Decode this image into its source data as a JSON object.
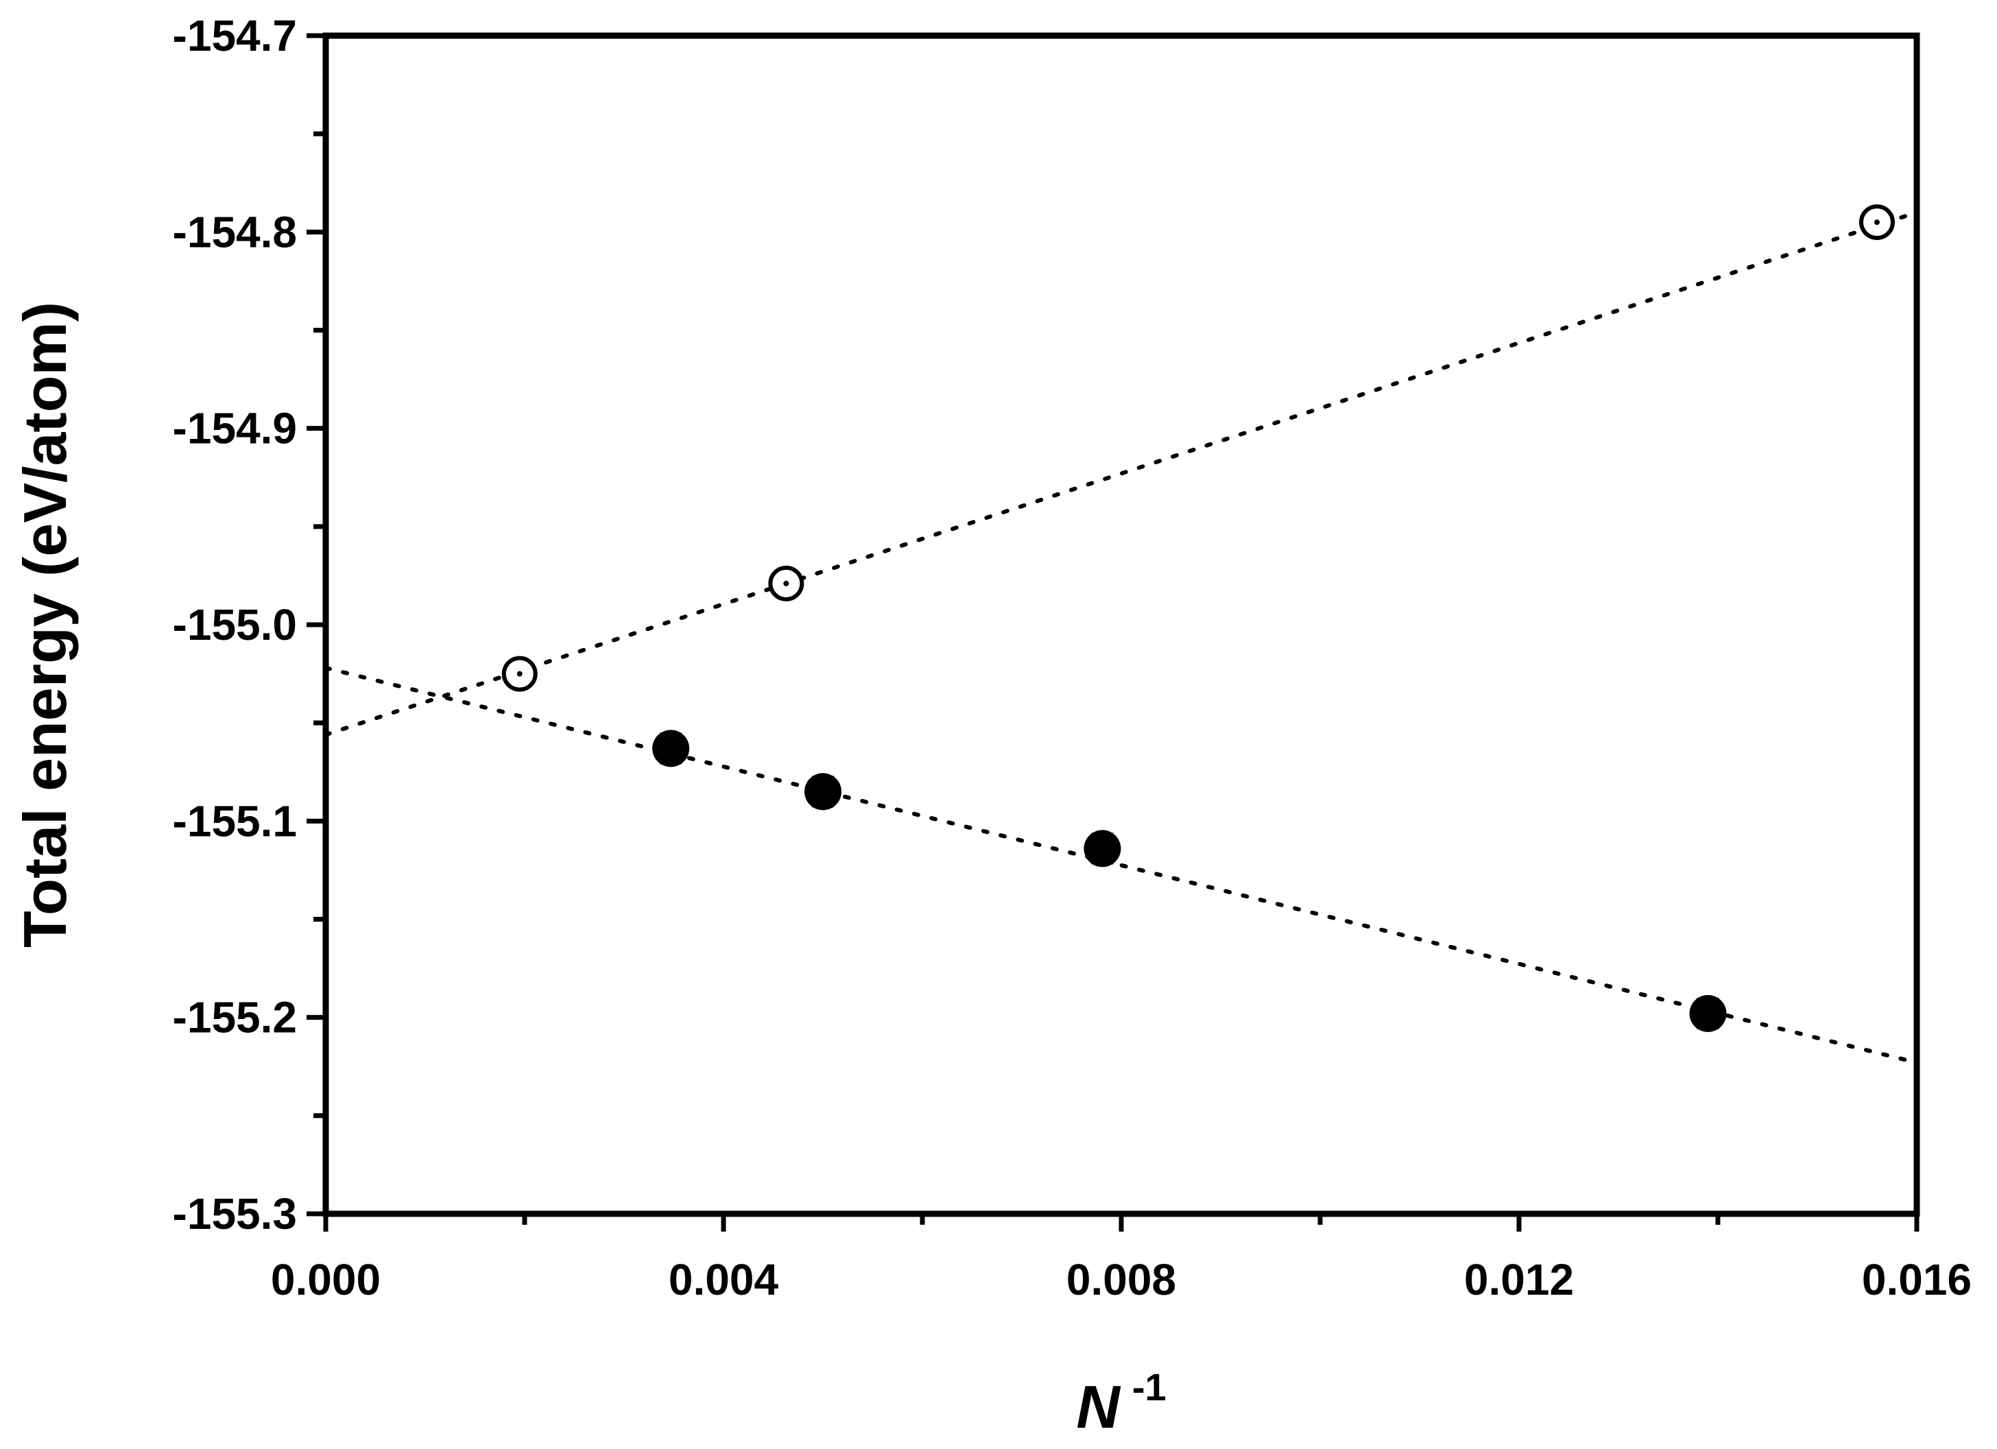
{
  "chart_data": {
    "type": "scatter",
    "title": "",
    "xlabel": "N",
    "xlabel_superscript": "-1",
    "ylabel": "Total energy (eV/atom)",
    "xlim": [
      0.0,
      0.016
    ],
    "ylim": [
      -155.3,
      -154.7
    ],
    "x_ticks": [
      "0.000",
      "0.004",
      "0.008",
      "0.012",
      "0.016"
    ],
    "y_ticks": [
      "-154.7",
      "-154.8",
      "-154.9",
      "-155.0",
      "-155.1",
      "-155.2",
      "-155.3"
    ],
    "grid": false,
    "legend": "none",
    "series": [
      {
        "marker": "open-circle-dot",
        "x": [
          0.00195,
          0.00463,
          0.0156
        ],
        "y": [
          -155.025,
          -154.979,
          -154.795
        ],
        "error": [
          0.0,
          0.0,
          0.0
        ],
        "fit": {
          "style": "dotted",
          "x": [
            0.0,
            0.016
          ],
          "y": [
            -155.056,
            -154.79
          ]
        }
      },
      {
        "marker": "filled-circle",
        "x": [
          0.00347,
          0.005,
          0.00781,
          0.0139
        ],
        "y": [
          -155.063,
          -155.085,
          -155.114,
          -155.198
        ],
        "error": [
          0.007,
          0.007,
          0.007,
          0.007
        ],
        "fit": {
          "style": "dotted",
          "x": [
            0.0,
            0.016
          ],
          "y": [
            -155.022,
            -155.223
          ]
        }
      }
    ],
    "colors": {
      "axis": "#000000",
      "marker": "#000000",
      "background": "#ffffff"
    }
  }
}
